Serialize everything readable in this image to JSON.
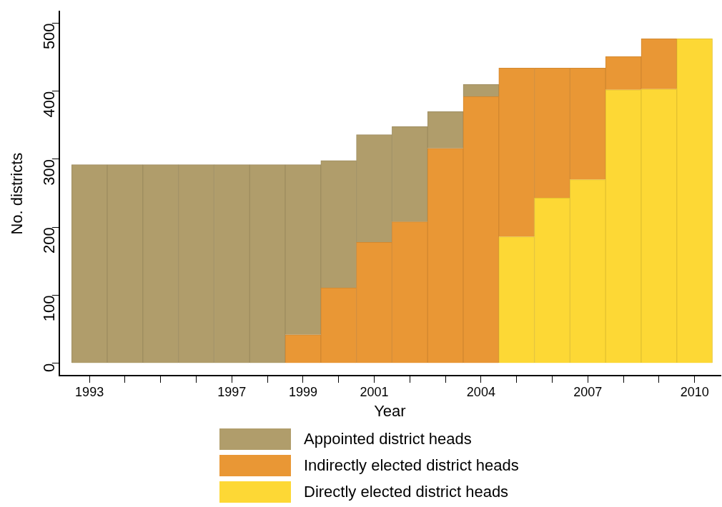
{
  "chart_data": {
    "type": "bar",
    "stacked": true,
    "xlabel": "Year",
    "ylabel": "No. districts",
    "x": [
      1993,
      1994,
      1995,
      1996,
      1997,
      1998,
      1999,
      2000,
      2001,
      2002,
      2003,
      2004,
      2005,
      2006,
      2007,
      2008,
      2009,
      2010
    ],
    "series": [
      {
        "name": "Directly elected district heads",
        "color": "#fdd835",
        "values": [
          0,
          0,
          0,
          0,
          0,
          0,
          0,
          0,
          0,
          0,
          0,
          0,
          186,
          243,
          270,
          402,
          403,
          477
        ]
      },
      {
        "name": "Indirectly elected district heads",
        "color": "#e99735",
        "values": [
          0,
          0,
          0,
          0,
          0,
          0,
          42,
          111,
          178,
          208,
          316,
          392,
          248,
          191,
          164,
          49,
          74,
          0
        ]
      },
      {
        "name": "Appointed district heads",
        "color": "#b09d6b",
        "values": [
          292,
          292,
          292,
          292,
          292,
          292,
          250,
          187,
          158,
          140,
          54,
          18,
          0,
          0,
          0,
          0,
          0,
          0
        ]
      }
    ],
    "xlim": [
      1992.15,
      2010.73
    ],
    "xticks": [
      1993,
      {
        "value": 1994,
        "label": null
      },
      {
        "value": 1995,
        "label": null
      },
      {
        "value": 1996,
        "label": null
      },
      1997,
      {
        "value": 1998,
        "label": null
      },
      1999,
      {
        "value": 2000,
        "label": null
      },
      2001,
      {
        "value": 2002,
        "label": null
      },
      {
        "value": 2003,
        "label": null
      },
      2004,
      {
        "value": 2005,
        "label": null
      },
      {
        "value": 2006,
        "label": null
      },
      2007,
      {
        "value": 2008,
        "label": null
      },
      {
        "value": 2009,
        "label": null
      },
      2010
    ],
    "ylim": [
      -18,
      517
    ],
    "yticks": [
      0,
      100,
      200,
      300,
      400,
      500
    ],
    "grid": false,
    "legend": "bottom"
  }
}
